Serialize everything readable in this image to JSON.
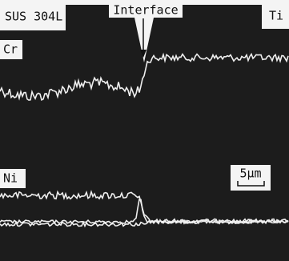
{
  "labels": {
    "left_material": "SUS 304L",
    "interface": "Interface",
    "right_material": "Ti",
    "cr": "Cr",
    "ni": "Ni",
    "scale": "5μm"
  }
}
